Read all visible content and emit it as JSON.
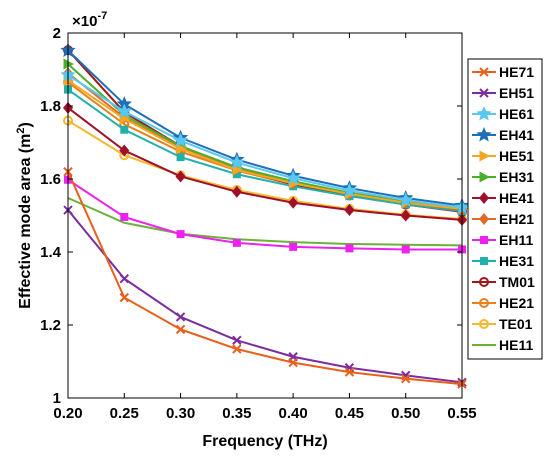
{
  "chart_data": {
    "type": "line",
    "xlabel": "Frequency (THz)",
    "ylabel": "Effective mode area  (m",
    "ylabel_sup": "2",
    "ylabel_close": ")",
    "y_exponent_label": "×10",
    "y_exponent_power": "-7",
    "xlim": [
      0.2,
      0.55
    ],
    "ylim": [
      1.0,
      2.0
    ],
    "x_ticks": [
      "0.20",
      "0.25",
      "0.30",
      "0.35",
      "0.40",
      "0.45",
      "0.50",
      "0.55"
    ],
    "y_ticks": [
      "1",
      "1.2",
      "1.4",
      "1.6",
      "1.8",
      "2"
    ],
    "legend_position": "right",
    "grid": false,
    "x": [
      0.2,
      0.25,
      0.3,
      0.35,
      0.4,
      0.45,
      0.5,
      0.55
    ],
    "series": [
      {
        "name": "HE71",
        "color": "#e8601c",
        "marker": "x",
        "values": [
          1.62,
          1.275,
          1.188,
          1.134,
          1.097,
          1.071,
          1.053,
          1.038
        ]
      },
      {
        "name": "EH51",
        "color": "#7b2d9e",
        "marker": "x",
        "values": [
          1.515,
          1.327,
          1.222,
          1.158,
          1.113,
          1.083,
          1.062,
          1.043
        ]
      },
      {
        "name": "HE61",
        "color": "#58c8f0",
        "marker": "star",
        "values": [
          1.885,
          1.785,
          1.705,
          1.645,
          1.602,
          1.568,
          1.542,
          1.522
        ]
      },
      {
        "name": "EH41",
        "color": "#1f6fb8",
        "marker": "star",
        "values": [
          1.952,
          1.805,
          1.713,
          1.653,
          1.609,
          1.575,
          1.548,
          1.527
        ]
      },
      {
        "name": "HE51",
        "color": "#f5a623",
        "marker": "triangle-right",
        "values": [
          1.87,
          1.765,
          1.683,
          1.625,
          1.588,
          1.559,
          1.535,
          1.518
        ]
      },
      {
        "name": "EH31",
        "color": "#4caf2a",
        "marker": "triangle-right",
        "values": [
          1.915,
          1.775,
          1.69,
          1.632,
          1.594,
          1.562,
          1.538,
          1.52
        ]
      },
      {
        "name": "HE41",
        "color": "#a0102a",
        "marker": "diamond",
        "values": [
          1.795,
          1.678,
          1.607,
          1.565,
          1.535,
          1.515,
          1.5,
          1.488
        ]
      },
      {
        "name": "EH21",
        "color": "#e06a28",
        "marker": "diamond",
        "values": [
          1.89,
          1.768,
          1.685,
          1.628,
          1.588,
          1.56,
          1.535,
          1.516
        ]
      },
      {
        "name": "EH11",
        "color": "#ee22ee",
        "marker": "square",
        "values": [
          1.598,
          1.496,
          1.449,
          1.425,
          1.414,
          1.41,
          1.407,
          1.407
        ]
      },
      {
        "name": "HE31",
        "color": "#20b2aa",
        "marker": "square",
        "values": [
          1.845,
          1.735,
          1.66,
          1.613,
          1.58,
          1.553,
          1.53,
          1.512
        ]
      },
      {
        "name": "TM01",
        "color": "#a01818",
        "marker": "circle",
        "values": [
          1.953,
          1.783,
          1.69,
          1.628,
          1.585,
          1.555,
          1.53,
          1.51
        ]
      },
      {
        "name": "HE21",
        "color": "#e8801c",
        "marker": "circle",
        "values": [
          1.865,
          1.75,
          1.675,
          1.623,
          1.585,
          1.555,
          1.53,
          1.512
        ]
      },
      {
        "name": "TE01",
        "color": "#f5b82e",
        "marker": "circle",
        "values": [
          1.76,
          1.665,
          1.61,
          1.57,
          1.54,
          1.518,
          1.502,
          1.49
        ]
      },
      {
        "name": "HE11",
        "color": "#6ab23a",
        "marker": "none",
        "values": [
          1.548,
          1.48,
          1.45,
          1.435,
          1.427,
          1.422,
          1.42,
          1.418
        ]
      }
    ]
  }
}
